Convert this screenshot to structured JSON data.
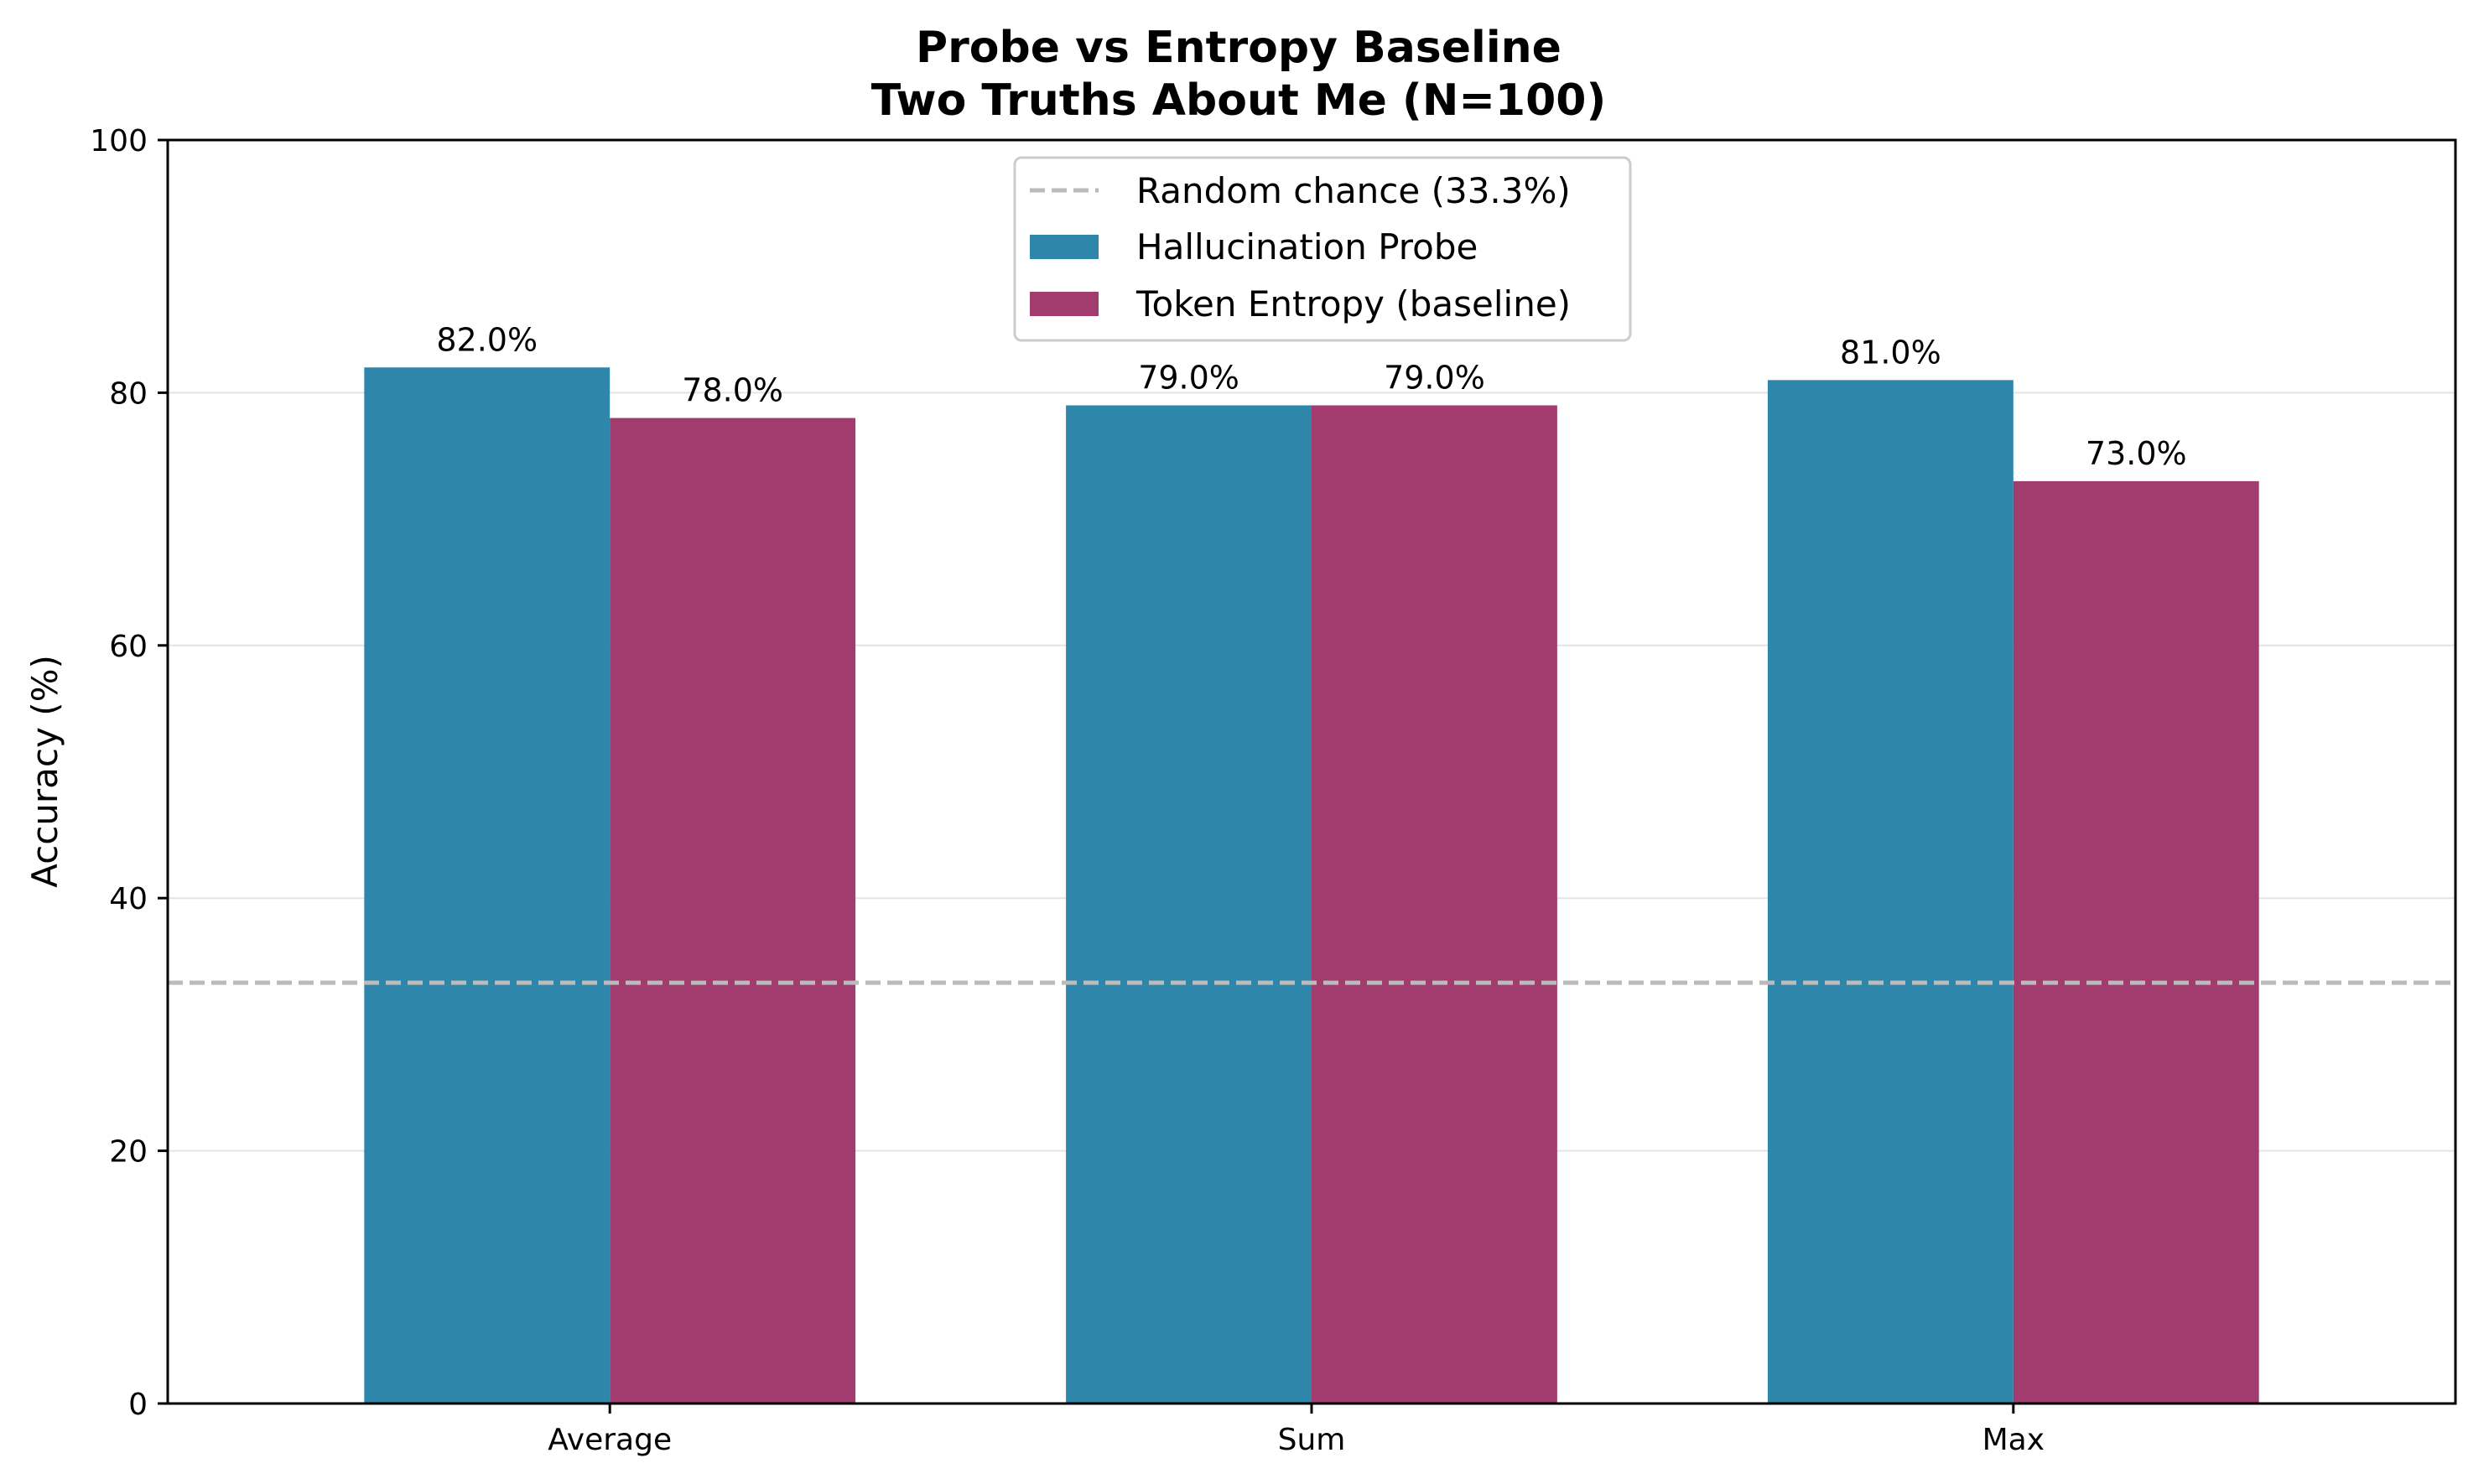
{
  "chart_data": {
    "type": "bar",
    "title_line1": "Probe vs Entropy Baseline",
    "title_line2": "Two Truths About Me (N=100)",
    "ylabel": "Accuracy (%)",
    "xlabel": "",
    "ylim": [
      0,
      100
    ],
    "yticks": [
      0,
      20,
      40,
      60,
      80,
      100
    ],
    "ytick_labels": [
      "0",
      "20",
      "40",
      "60",
      "80",
      "100"
    ],
    "categories": [
      "Average",
      "Sum",
      "Max"
    ],
    "series": [
      {
        "name": "Hallucination Probe",
        "color": "#2e86ab",
        "values": [
          82.0,
          79.0,
          81.0
        ],
        "labels": [
          "82.0%",
          "79.0%",
          "81.0%"
        ]
      },
      {
        "name": "Token Entropy (baseline)",
        "color": "#a23b6e",
        "values": [
          78.0,
          79.0,
          73.0
        ],
        "labels": [
          "78.0%",
          "79.0%",
          "73.0%"
        ]
      }
    ],
    "reference_line": {
      "name": "Random chance (33.3%)",
      "value": 33.3,
      "style": "dashed",
      "color": "#bbbbbb"
    },
    "grid": "y",
    "legend_position": "upper center"
  }
}
